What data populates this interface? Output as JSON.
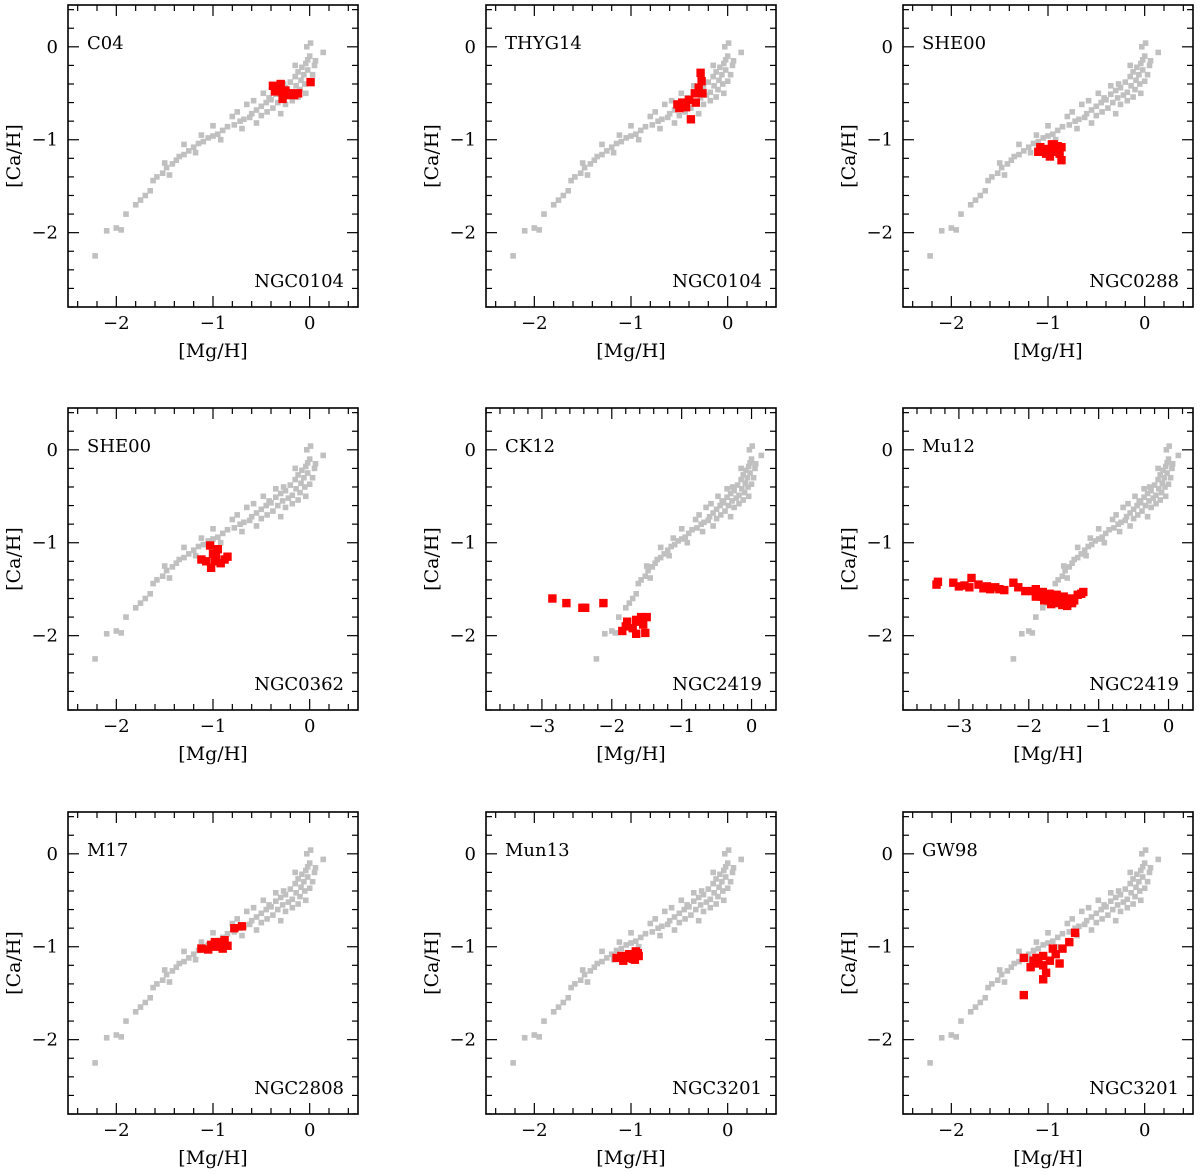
{
  "colors": {
    "background": "#c0c0c0",
    "highlight": "#ff0000",
    "axis": "#000000"
  },
  "background_points": [
    [
      0.01,
      0.04
    ],
    [
      -0.03,
      0.0
    ],
    [
      0.14,
      -0.06
    ],
    [
      0.0,
      -0.1
    ],
    [
      -0.02,
      -0.14
    ],
    [
      -0.04,
      -0.18
    ],
    [
      0.05,
      -0.2
    ],
    [
      -0.08,
      -0.22
    ],
    [
      -0.02,
      -0.25
    ],
    [
      -0.12,
      -0.27
    ],
    [
      0.03,
      -0.3
    ],
    [
      -0.06,
      -0.3
    ],
    [
      -0.15,
      -0.32
    ],
    [
      -0.09,
      -0.36
    ],
    [
      0.0,
      -0.37
    ],
    [
      -0.2,
      -0.38
    ],
    [
      -0.05,
      -0.4
    ],
    [
      -0.14,
      -0.42
    ],
    [
      -0.25,
      -0.44
    ],
    [
      -0.1,
      -0.46
    ],
    [
      -0.3,
      -0.47
    ],
    [
      -0.18,
      -0.49
    ],
    [
      -0.04,
      -0.5
    ],
    [
      -0.35,
      -0.51
    ],
    [
      -0.22,
      -0.52
    ],
    [
      -0.12,
      -0.54
    ],
    [
      -0.28,
      -0.55
    ],
    [
      -0.4,
      -0.57
    ],
    [
      -0.18,
      -0.58
    ],
    [
      -0.45,
      -0.6
    ],
    [
      -0.33,
      -0.6
    ],
    [
      -0.25,
      -0.62
    ],
    [
      -0.5,
      -0.64
    ],
    [
      -0.38,
      -0.66
    ],
    [
      -0.55,
      -0.68
    ],
    [
      -0.44,
      -0.7
    ],
    [
      -0.6,
      -0.72
    ],
    [
      -0.3,
      -0.72
    ],
    [
      -0.5,
      -0.74
    ],
    [
      -0.62,
      -0.76
    ],
    [
      -0.68,
      -0.78
    ],
    [
      -0.72,
      -0.8
    ],
    [
      -0.55,
      -0.82
    ],
    [
      -0.78,
      -0.84
    ],
    [
      -0.85,
      -0.86
    ],
    [
      -0.7,
      -0.88
    ],
    [
      -0.9,
      -0.9
    ],
    [
      -0.95,
      -0.94
    ],
    [
      -1.0,
      -0.96
    ],
    [
      -1.05,
      -0.98
    ],
    [
      -0.92,
      -1.0
    ],
    [
      -1.1,
      -1.02
    ],
    [
      -1.15,
      -1.04
    ],
    [
      -1.2,
      -1.08
    ],
    [
      -1.25,
      -1.12
    ],
    [
      -1.3,
      -1.16
    ],
    [
      -1.35,
      -1.18
    ],
    [
      -1.38,
      -1.22
    ],
    [
      -1.42,
      -1.26
    ],
    [
      -1.48,
      -1.3
    ],
    [
      -1.52,
      -1.36
    ],
    [
      -1.58,
      -1.4
    ],
    [
      -1.62,
      -1.44
    ],
    [
      -1.45,
      -1.38
    ],
    [
      -1.65,
      -1.55
    ],
    [
      -1.7,
      -1.6
    ],
    [
      -1.8,
      -1.7
    ],
    [
      -1.9,
      -1.8
    ],
    [
      -2.0,
      -1.95
    ],
    [
      -1.95,
      -1.97
    ],
    [
      -2.1,
      -1.98
    ],
    [
      -2.22,
      -2.25
    ],
    [
      -0.65,
      -0.62
    ],
    [
      -0.8,
      -0.75
    ],
    [
      -1.0,
      -0.85
    ],
    [
      -1.12,
      -0.95
    ],
    [
      -1.3,
      -1.05
    ],
    [
      -0.35,
      -0.42
    ],
    [
      -0.15,
      -0.2
    ],
    [
      0.06,
      -0.15
    ],
    [
      -0.48,
      -0.5
    ],
    [
      -0.58,
      -0.58
    ],
    [
      -0.75,
      -0.7
    ],
    [
      -1.18,
      -1.14
    ],
    [
      -1.5,
      -1.25
    ],
    [
      -1.75,
      -1.65
    ],
    [
      -0.42,
      -0.55
    ],
    [
      -0.27,
      -0.4
    ]
  ],
  "panels": [
    {
      "ref": "C04",
      "cluster": "NGC0104",
      "xlim": [
        -2.5,
        0.5
      ],
      "ylim": [
        -2.8,
        0.45
      ],
      "xticks": [
        -2,
        -1,
        0
      ],
      "yticks": [
        -2,
        -1,
        0
      ],
      "xlabel": "[Mg/H]",
      "ylabel": "[Ca/H]",
      "points": [
        [
          -0.38,
          -0.42
        ],
        [
          -0.33,
          -0.44
        ],
        [
          -0.3,
          -0.48
        ],
        [
          -0.36,
          -0.48
        ],
        [
          -0.25,
          -0.47
        ],
        [
          -0.28,
          -0.56
        ],
        [
          -0.2,
          -0.5
        ],
        [
          -0.16,
          -0.52
        ],
        [
          -0.12,
          -0.5
        ],
        [
          -0.24,
          -0.52
        ],
        [
          0.01,
          -0.38
        ],
        [
          -0.3,
          -0.4
        ]
      ]
    },
    {
      "ref": "THYG14",
      "cluster": "NGC0104",
      "xlim": [
        -2.5,
        0.5
      ],
      "ylim": [
        -2.8,
        0.45
      ],
      "xticks": [
        -2,
        -1,
        0
      ],
      "yticks": [
        -2,
        -1,
        0
      ],
      "xlabel": "[Mg/H]",
      "ylabel": "[Ca/H]",
      "points": [
        [
          -0.28,
          -0.28
        ],
        [
          -0.27,
          -0.37
        ],
        [
          -0.3,
          -0.44
        ],
        [
          -0.34,
          -0.5
        ],
        [
          -0.26,
          -0.5
        ],
        [
          -0.4,
          -0.57
        ],
        [
          -0.47,
          -0.6
        ],
        [
          -0.52,
          -0.62
        ],
        [
          -0.43,
          -0.65
        ],
        [
          -0.33,
          -0.6
        ],
        [
          -0.38,
          -0.78
        ],
        [
          -0.5,
          -0.66
        ]
      ]
    },
    {
      "ref": "SHE00",
      "cluster": "NGC0288",
      "xlim": [
        -2.5,
        0.5
      ],
      "ylim": [
        -2.8,
        0.45
      ],
      "xticks": [
        -2,
        -1,
        0
      ],
      "yticks": [
        -2,
        -1,
        0
      ],
      "xlabel": "[Mg/H]",
      "ylabel": "[Ca/H]",
      "points": [
        [
          -0.96,
          -1.05
        ],
        [
          -0.9,
          -1.07
        ],
        [
          -1.0,
          -1.1
        ],
        [
          -1.08,
          -1.08
        ],
        [
          -1.1,
          -1.13
        ],
        [
          -0.93,
          -1.13
        ],
        [
          -0.86,
          -1.08
        ],
        [
          -0.86,
          -1.22
        ],
        [
          -0.98,
          -1.18
        ],
        [
          -0.88,
          -1.15
        ],
        [
          -1.02,
          -1.15
        ],
        [
          -0.94,
          -1.05
        ]
      ]
    },
    {
      "ref": "SHE00",
      "cluster": "NGC0362",
      "xlim": [
        -2.5,
        0.5
      ],
      "ylim": [
        -2.8,
        0.45
      ],
      "xticks": [
        -2,
        -1,
        0
      ],
      "yticks": [
        -2,
        -1,
        0
      ],
      "xlabel": "[Mg/H]",
      "ylabel": "[Ca/H]",
      "points": [
        [
          -1.03,
          -1.03
        ],
        [
          -0.95,
          -1.07
        ],
        [
          -1.0,
          -1.12
        ],
        [
          -1.12,
          -1.18
        ],
        [
          -1.07,
          -1.2
        ],
        [
          -0.98,
          -1.2
        ],
        [
          -0.85,
          -1.15
        ],
        [
          -0.92,
          -1.22
        ],
        [
          -1.02,
          -1.27
        ],
        [
          -0.88,
          -1.18
        ],
        [
          -0.97,
          -1.13
        ]
      ]
    },
    {
      "ref": "CK12",
      "cluster": "NGC2419",
      "xlim": [
        -3.8,
        0.35
      ],
      "ylim": [
        -2.8,
        0.45
      ],
      "xticks": [
        -3,
        -2,
        -1,
        0
      ],
      "yticks": [
        -2,
        -1,
        0
      ],
      "xlabel": "[Mg/H]",
      "ylabel": "[Ca/H]",
      "points": [
        [
          -2.85,
          -1.6
        ],
        [
          -2.65,
          -1.65
        ],
        [
          -2.42,
          -1.7
        ],
        [
          -2.38,
          -1.7
        ],
        [
          -2.12,
          -1.65
        ],
        [
          -1.58,
          -1.8
        ],
        [
          -1.65,
          -1.83
        ],
        [
          -1.5,
          -1.8
        ],
        [
          -1.78,
          -1.85
        ],
        [
          -1.55,
          -1.88
        ],
        [
          -1.7,
          -1.92
        ],
        [
          -1.85,
          -1.95
        ],
        [
          -1.65,
          -1.98
        ],
        [
          -1.52,
          -1.97
        ],
        [
          -1.62,
          -1.85
        ],
        [
          -1.8,
          -1.9
        ]
      ]
    },
    {
      "ref": "Mu12",
      "cluster": "NGC2419",
      "xlim": [
        -3.8,
        0.35
      ],
      "ylim": [
        -2.8,
        0.45
      ],
      "xticks": [
        -3,
        -2,
        -1,
        0
      ],
      "yticks": [
        -2,
        -1,
        0
      ],
      "xlabel": "[Mg/H]",
      "ylabel": "[Ca/H]",
      "points": [
        [
          -3.32,
          -1.45
        ],
        [
          -3.3,
          -1.42
        ],
        [
          -3.08,
          -1.43
        ],
        [
          -3.0,
          -1.47
        ],
        [
          -2.92,
          -1.46
        ],
        [
          -2.82,
          -1.38
        ],
        [
          -2.85,
          -1.48
        ],
        [
          -2.72,
          -1.45
        ],
        [
          -2.65,
          -1.49
        ],
        [
          -2.6,
          -1.47
        ],
        [
          -2.55,
          -1.5
        ],
        [
          -2.48,
          -1.48
        ],
        [
          -2.42,
          -1.5
        ],
        [
          -2.35,
          -1.51
        ],
        [
          -2.22,
          -1.43
        ],
        [
          -2.15,
          -1.48
        ],
        [
          -2.05,
          -1.52
        ],
        [
          -1.95,
          -1.52
        ],
        [
          -1.9,
          -1.5
        ],
        [
          -1.85,
          -1.55
        ],
        [
          -1.8,
          -1.53
        ],
        [
          -1.75,
          -1.57
        ],
        [
          -1.7,
          -1.55
        ],
        [
          -1.65,
          -1.58
        ],
        [
          -1.6,
          -1.56
        ],
        [
          -1.55,
          -1.6
        ],
        [
          -1.5,
          -1.58
        ],
        [
          -1.45,
          -1.62
        ],
        [
          -1.4,
          -1.6
        ],
        [
          -1.35,
          -1.62
        ],
        [
          -1.3,
          -1.56
        ],
        [
          -1.25,
          -1.55
        ],
        [
          -1.22,
          -1.53
        ],
        [
          -1.72,
          -1.62
        ],
        [
          -1.6,
          -1.65
        ],
        [
          -1.52,
          -1.67
        ],
        [
          -1.45,
          -1.68
        ],
        [
          -1.82,
          -1.58
        ],
        [
          -1.68,
          -1.66
        ],
        [
          -1.58,
          -1.62
        ],
        [
          -1.38,
          -1.65
        ],
        [
          -1.9,
          -1.58
        ],
        [
          -1.78,
          -1.62
        ]
      ]
    },
    {
      "ref": "M17",
      "cluster": "NGC2808",
      "xlim": [
        -2.5,
        0.5
      ],
      "ylim": [
        -2.8,
        0.45
      ],
      "xticks": [
        -2,
        -1,
        0
      ],
      "yticks": [
        -2,
        -1,
        0
      ],
      "xlabel": "[Mg/H]",
      "ylabel": "[Ca/H]",
      "points": [
        [
          -1.12,
          -1.02
        ],
        [
          -1.02,
          -0.98
        ],
        [
          -0.98,
          -1.0
        ],
        [
          -0.92,
          -0.95
        ],
        [
          -0.88,
          -0.93
        ],
        [
          -1.05,
          -1.03
        ],
        [
          -0.95,
          -0.98
        ],
        [
          -0.9,
          -1.02
        ],
        [
          -0.78,
          -0.8
        ],
        [
          -0.7,
          -0.78
        ],
        [
          -0.85,
          -0.99
        ],
        [
          -0.98,
          -0.95
        ]
      ]
    },
    {
      "ref": "Mun13",
      "cluster": "NGC3201",
      "xlim": [
        -2.5,
        0.5
      ],
      "ylim": [
        -2.8,
        0.45
      ],
      "xticks": [
        -2,
        -1,
        0
      ],
      "yticks": [
        -2,
        -1,
        0
      ],
      "xlabel": "[Mg/H]",
      "ylabel": "[Ca/H]",
      "points": [
        [
          -1.15,
          -1.12
        ],
        [
          -1.1,
          -1.1
        ],
        [
          -1.05,
          -1.12
        ],
        [
          -1.0,
          -1.08
        ],
        [
          -0.95,
          -1.05
        ],
        [
          -0.92,
          -1.1
        ],
        [
          -1.08,
          -1.15
        ],
        [
          -0.98,
          -1.13
        ],
        [
          -1.02,
          -1.08
        ],
        [
          -0.96,
          -1.14
        ],
        [
          -0.93,
          -1.07
        ]
      ]
    },
    {
      "ref": "GW98",
      "cluster": "NGC3201",
      "xlim": [
        -2.5,
        0.5
      ],
      "ylim": [
        -2.8,
        0.45
      ],
      "xticks": [
        -2,
        -1,
        0
      ],
      "yticks": [
        -2,
        -1,
        0
      ],
      "xlabel": "[Mg/H]",
      "ylabel": "[Ca/H]",
      "points": [
        [
          -0.72,
          -0.85
        ],
        [
          -0.78,
          -0.95
        ],
        [
          -0.85,
          -1.02
        ],
        [
          -0.95,
          -1.02
        ],
        [
          -1.05,
          -1.1
        ],
        [
          -1.12,
          -1.12
        ],
        [
          -1.1,
          -1.18
        ],
        [
          -1.05,
          -1.2
        ],
        [
          -1.18,
          -1.22
        ],
        [
          -1.25,
          -1.12
        ],
        [
          -0.92,
          -1.08
        ],
        [
          -0.88,
          -1.18
        ],
        [
          -1.02,
          -1.28
        ],
        [
          -1.05,
          -1.35
        ],
        [
          -1.25,
          -1.52
        ],
        [
          -0.98,
          -1.15
        ],
        [
          -1.15,
          -1.15
        ]
      ]
    }
  ]
}
